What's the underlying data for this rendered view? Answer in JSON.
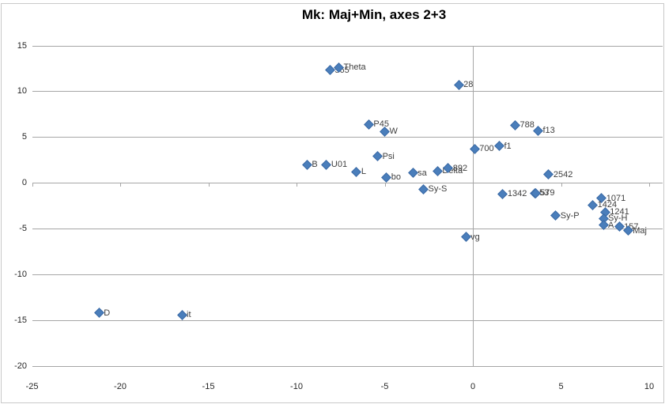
{
  "title": "Mk: Maj+Min, axes 2+3",
  "chart_data": {
    "type": "scatter",
    "title": "Mk: Maj+Min, axes 2+3",
    "xlabel": "",
    "ylabel": "",
    "xlim": [
      -25,
      10
    ],
    "ylim": [
      -20,
      15
    ],
    "x_ticks": [
      -25,
      -20,
      -15,
      -10,
      -5,
      0,
      5,
      10
    ],
    "y_ticks": [
      15,
      10,
      5,
      0,
      -5,
      -10,
      -15,
      -20
    ],
    "grid": "horizontal-only",
    "legend": "none",
    "marker": {
      "shape": "diamond",
      "color": "#4a7ebb",
      "border": "#3a6aa5"
    },
    "colors": {
      "gridline": "#a6a6a6",
      "axis_line": "#a6a6a6",
      "tick_label": "#262626",
      "data_label": "#3f3f3f",
      "title": "#000000",
      "chart_border": "#c9c9c9"
    },
    "points": [
      {
        "label": "565",
        "x": -8.1,
        "y": 12.3
      },
      {
        "label": "Theta",
        "x": -7.6,
        "y": 12.6
      },
      {
        "label": "28",
        "x": -0.8,
        "y": 10.7
      },
      {
        "label": "P45",
        "x": -5.9,
        "y": 6.4
      },
      {
        "label": "W",
        "x": -5.0,
        "y": 5.6
      },
      {
        "label": "788",
        "x": 2.4,
        "y": 6.3
      },
      {
        "label": "f13",
        "x": 3.7,
        "y": 5.7
      },
      {
        "label": "f1",
        "x": 1.5,
        "y": 4.0
      },
      {
        "label": "700",
        "x": 0.1,
        "y": 3.7
      },
      {
        "label": "Psi",
        "x": -5.4,
        "y": 2.9
      },
      {
        "label": "B",
        "x": -9.4,
        "y": 2.0
      },
      {
        "label": "U01",
        "x": -8.3,
        "y": 2.0
      },
      {
        "label": "L",
        "x": -6.6,
        "y": 1.2
      },
      {
        "label": "bo",
        "x": -4.9,
        "y": 0.6
      },
      {
        "label": "sa",
        "x": -3.4,
        "y": 1.1
      },
      {
        "label": "Delta",
        "x": -2.0,
        "y": 1.3
      },
      {
        "label": "892",
        "x": -1.4,
        "y": 1.6
      },
      {
        "label": "Sy-S",
        "x": -2.8,
        "y": -0.7
      },
      {
        "label": "2542",
        "x": 4.3,
        "y": 0.9
      },
      {
        "label": "1342",
        "x": 1.7,
        "y": -1.2
      },
      {
        "label": "53",
        "x": 3.5,
        "y": -1.1
      },
      {
        "label": "579",
        "x": 3.55,
        "y": -1.1
      },
      {
        "label": "1071",
        "x": 7.3,
        "y": -1.7
      },
      {
        "label": "1424",
        "x": 6.8,
        "y": -2.4
      },
      {
        "label": "1241",
        "x": 7.5,
        "y": -3.2
      },
      {
        "label": "Sy-H",
        "x": 7.4,
        "y": -3.9
      },
      {
        "label": "Sy-P",
        "x": 4.7,
        "y": -3.6
      },
      {
        "label": "A",
        "x": 7.4,
        "y": -4.6
      },
      {
        "label": "157",
        "x": 8.3,
        "y": -4.8
      },
      {
        "label": "Maj",
        "x": 8.8,
        "y": -5.2
      },
      {
        "label": "vg",
        "x": -0.4,
        "y": -5.9
      },
      {
        "label": "D",
        "x": -21.2,
        "y": -14.2
      },
      {
        "label": "it",
        "x": -16.5,
        "y": -14.4
      }
    ]
  }
}
